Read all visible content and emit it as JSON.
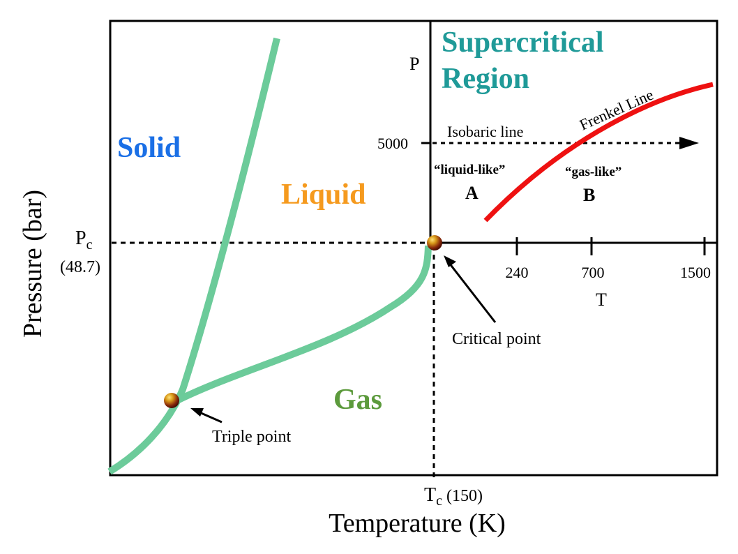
{
  "axes": {
    "x_label": "Temperature (K)",
    "y_label": "Pressure (bar)",
    "tc_label": "T",
    "tc_sub": "c",
    "tc_value": "(150)",
    "pc_label": "P",
    "pc_sub": "c",
    "pc_value": "(48.7)"
  },
  "regions": {
    "solid": "Solid",
    "liquid": "Liquid",
    "gas": "Gas",
    "supercritical_line1": "Supercritical",
    "supercritical_line2": "Region"
  },
  "points": {
    "triple": "Triple point",
    "critical": "Critical point"
  },
  "inset": {
    "p_axis": "P",
    "t_axis": "T",
    "p_tick": "5000",
    "t_ticks": [
      "240",
      "700",
      "1500"
    ],
    "isobaric": "Isobaric line",
    "frenkel": "Frenkel Line",
    "liquid_like": "“liquid-like”",
    "gas_like": "“gas-like”",
    "point_a": "A",
    "point_b": "B"
  },
  "colors": {
    "phase_curve": "#6ccb9a",
    "frenkel_line": "#ee1111",
    "solid": "#1a6fe6",
    "liquid": "#f59a1e",
    "gas": "#5c9a3c",
    "supercritical": "#1f9a98"
  }
}
